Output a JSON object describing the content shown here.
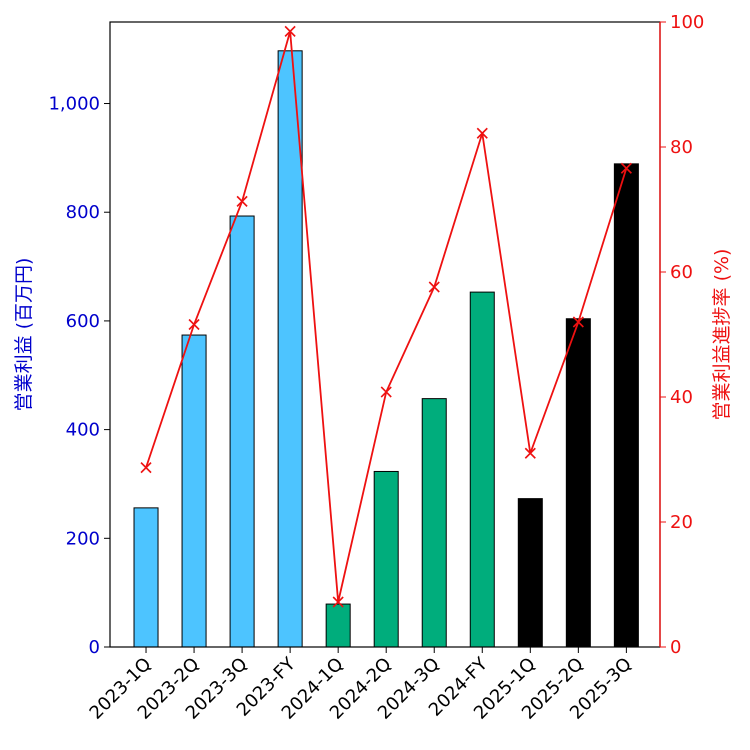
{
  "chart_data": {
    "type": "bar",
    "categories": [
      "2023-1Q",
      "2023-2Q",
      "2023-3Q",
      "2023-FY",
      "2024-1Q",
      "2024-2Q",
      "2024-3Q",
      "2024-FY",
      "2025-1Q",
      "2025-2Q",
      "2025-3Q"
    ],
    "bar_colors": [
      "#4dc4ff",
      "#4dc4ff",
      "#4dc4ff",
      "#4dc4ff",
      "#00ad7c",
      "#00ad7c",
      "#00ad7c",
      "#00ad7c",
      "#000000",
      "#000000",
      "#000000"
    ],
    "series": [
      {
        "name": "営業利益 (百万円)",
        "type": "bar",
        "axis": "left",
        "values": [
          256,
          574,
          793,
          1097,
          79,
          323,
          457,
          653,
          273,
          604,
          889
        ]
      },
      {
        "name": "営業利益進捗率 (%)",
        "type": "line",
        "axis": "right",
        "color": "#ee1111",
        "marker": "x",
        "values": [
          28.7,
          51.6,
          71.3,
          98.5,
          7.2,
          40.8,
          57.6,
          82.2,
          31.0,
          52.0,
          76.6
        ]
      }
    ],
    "ylabel": "営業利益 (百万円)",
    "ylabel_right": "営業利益進捗率 (%)",
    "ylim": [
      0,
      1150
    ],
    "ylim_right": [
      0,
      100
    ],
    "yticks": [
      0,
      200,
      400,
      600,
      800,
      1000
    ],
    "yticks_labels": [
      "0",
      "200",
      "400",
      "600",
      "800",
      "1,000"
    ],
    "yticks_right": [
      0,
      20,
      40,
      60,
      80,
      100
    ],
    "yticks_right_labels": [
      "0",
      "20",
      "40",
      "60",
      "80",
      "100"
    ],
    "left_axis_color": "#0000cc",
    "right_axis_color": "#ee1111",
    "grid": false
  }
}
